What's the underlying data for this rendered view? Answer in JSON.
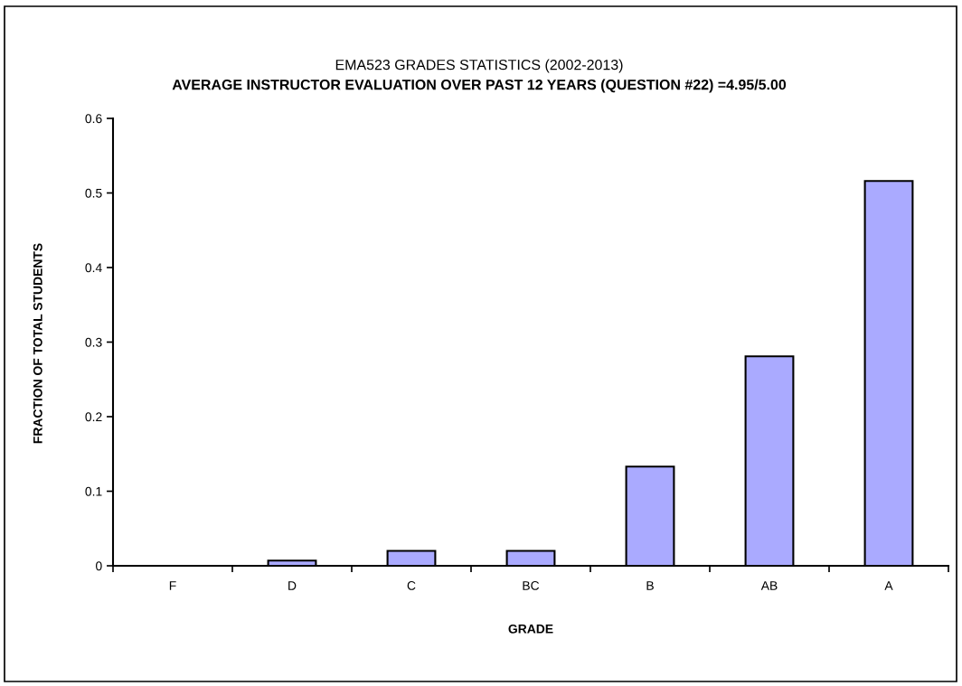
{
  "chart_data": {
    "type": "bar",
    "title": "EMA523 GRADES STATISTICS (2002-2013)",
    "subtitle": "AVERAGE INSTRUCTOR EVALUATION OVER PAST 12 YEARS (QUESTION #22) =4.95/5.00",
    "xlabel": "GRADE",
    "ylabel": "FRACTION OF TOTAL STUDENTS",
    "categories": [
      "F",
      "D",
      "C",
      "BC",
      "B",
      "AB",
      "A"
    ],
    "values": [
      0,
      0.007,
      0.02,
      0.02,
      0.133,
      0.281,
      0.516
    ],
    "color": "#aaaaff",
    "ylim": [
      0,
      0.6
    ],
    "yticks": [
      0,
      0.1,
      0.2,
      0.3,
      0.4,
      0.5,
      0.6
    ],
    "grid": false
  }
}
